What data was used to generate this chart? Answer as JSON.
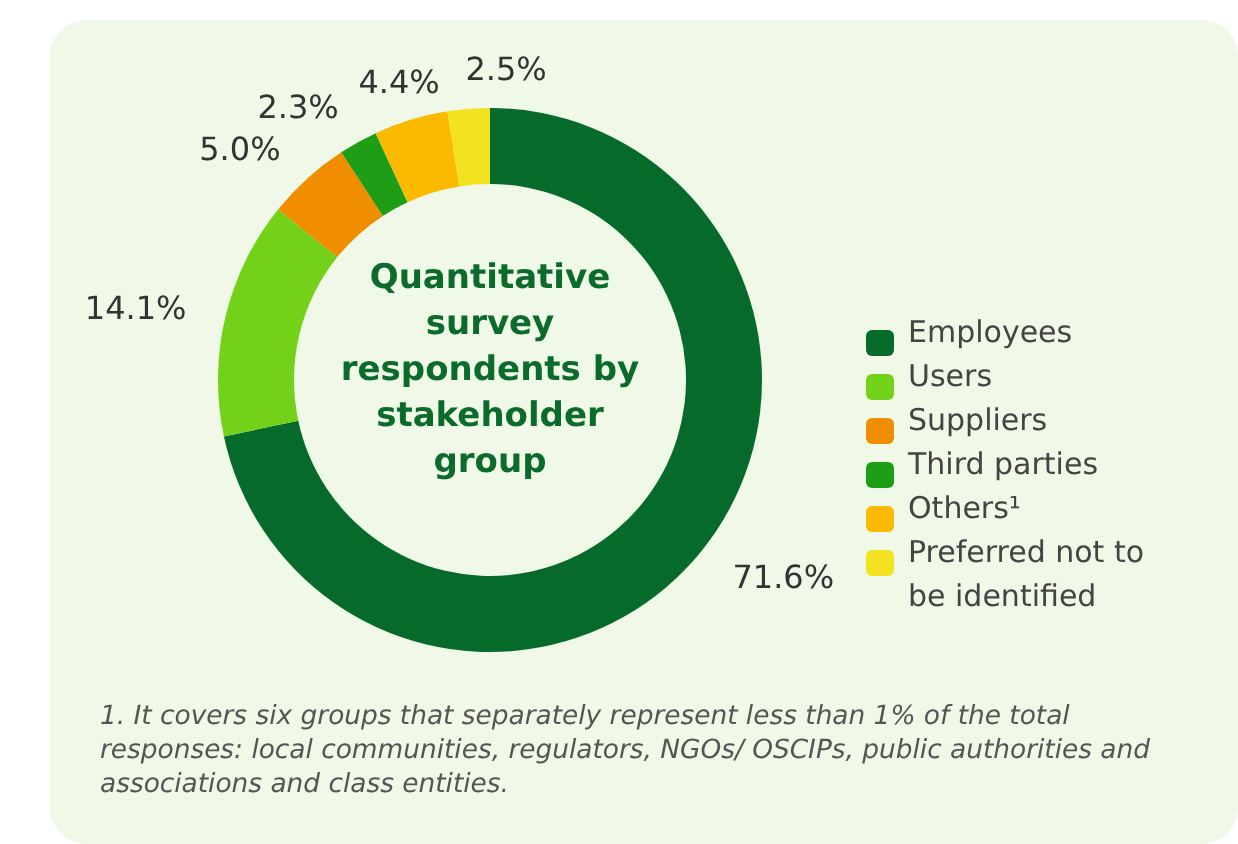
{
  "chart_data": {
    "type": "donut",
    "title": "Quantitative survey respondents by stakeholder group",
    "categories": [
      "Employees",
      "Users",
      "Suppliers",
      "Third parties",
      "Others¹",
      "Preferred not to be identified"
    ],
    "values": [
      71.6,
      14.1,
      5.0,
      2.3,
      4.4,
      2.5
    ],
    "value_labels": [
      "71.6%",
      "14.1%",
      "5.0%",
      "2.3%",
      "4.4%",
      "2.5%"
    ],
    "colors": [
      "#056a2a",
      "#72d118",
      "#f08e00",
      "#1e9e17",
      "#fbb900",
      "#f2e21f"
    ],
    "legend": "right",
    "annotations": [
      "1. It covers six groups that separately represent less than 1% of the total responses: local communities, regulators, NGOs/ OSCIPs, public authorities and associations and class entities."
    ]
  }
}
